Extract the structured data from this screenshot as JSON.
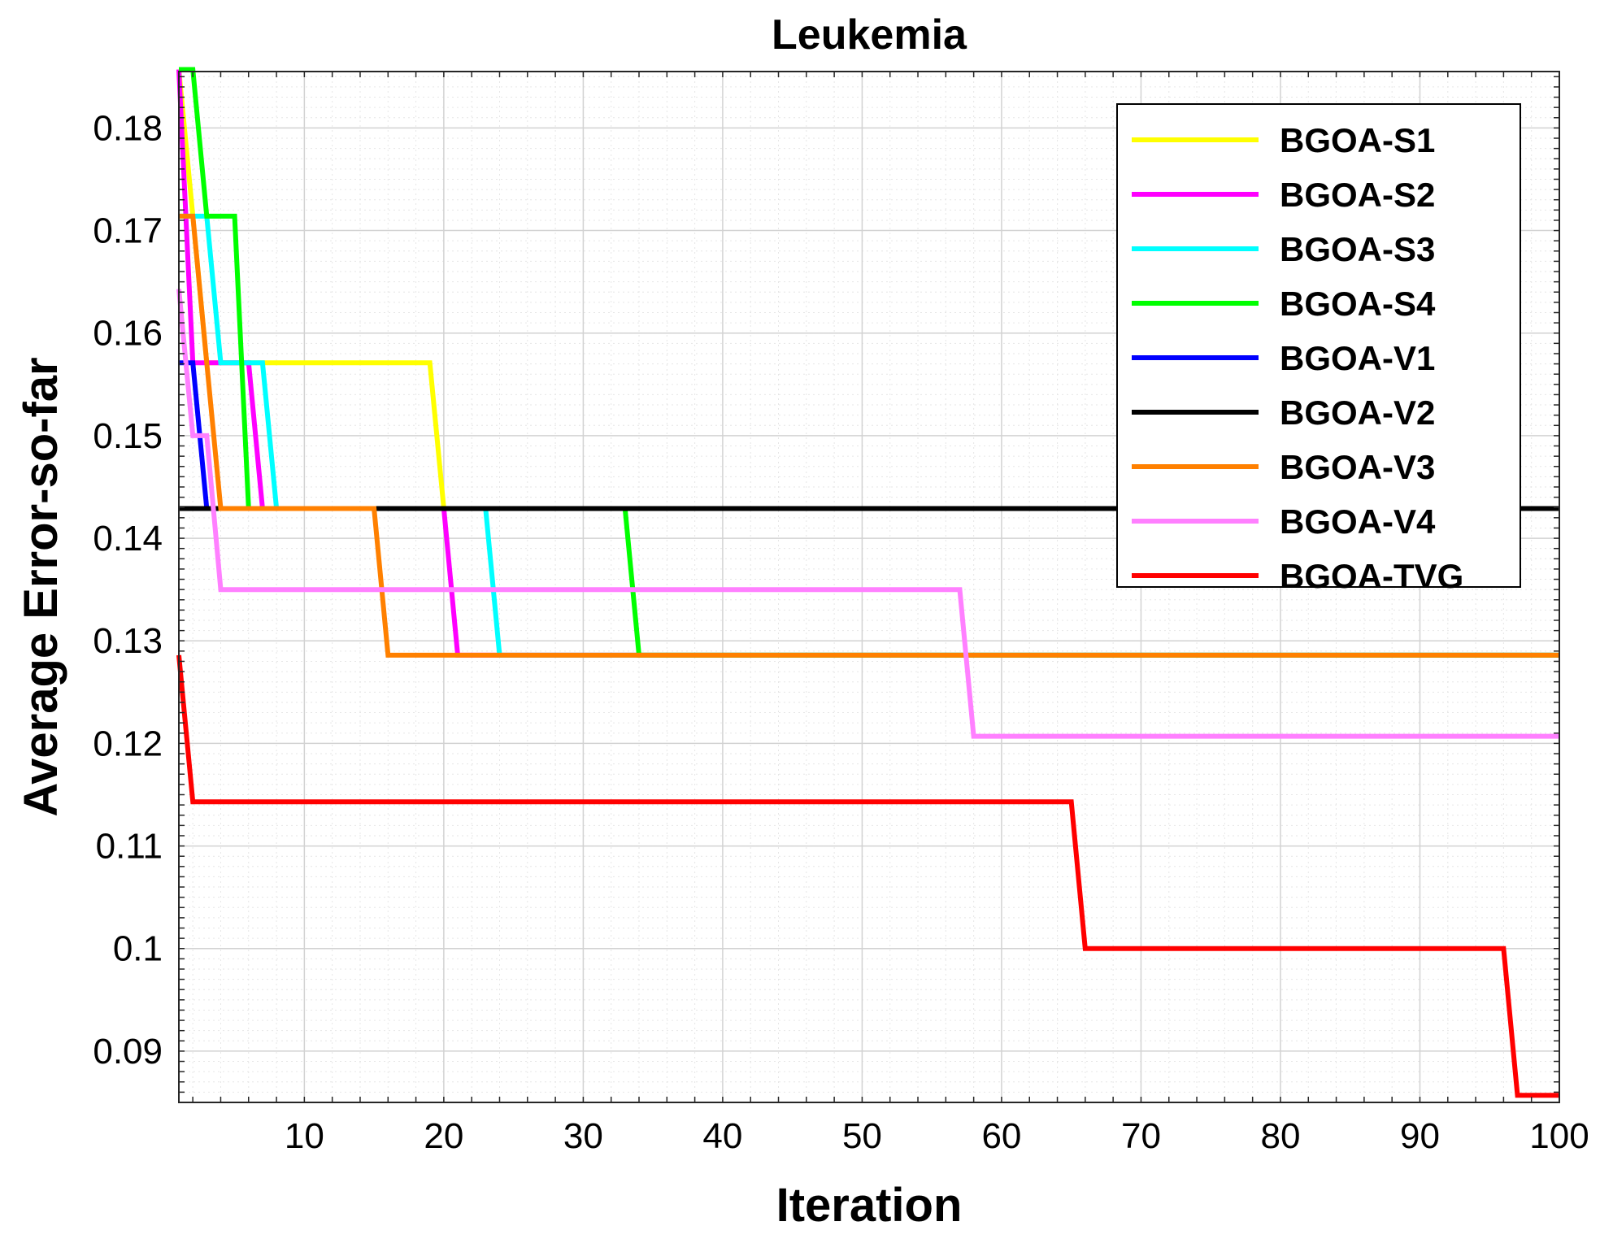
{
  "chart_data": {
    "type": "line",
    "title": "Leukemia",
    "xlabel": "Iteration",
    "ylabel": "Average Error-so-far",
    "xlim": [
      1,
      100
    ],
    "ylim": [
      0.085,
      0.1855
    ],
    "grid": true,
    "legend_position": "top-right",
    "xticks": [
      10,
      20,
      30,
      40,
      50,
      60,
      70,
      80,
      90,
      100
    ],
    "xtick_labels": [
      "10",
      "20",
      "30",
      "40",
      "50",
      "60",
      "70",
      "80",
      "90",
      "100"
    ],
    "yticks": [
      0.09,
      0.1,
      0.11,
      0.12,
      0.13,
      0.14,
      0.15,
      0.16,
      0.17,
      0.18
    ],
    "ytick_labels": [
      "0.09",
      "0.1",
      "0.11",
      "0.12",
      "0.13",
      "0.14",
      "0.15",
      "0.16",
      "0.17",
      "0.18"
    ],
    "series": [
      {
        "name": "BGOA-S1",
        "color": "#FFFF00",
        "points": [
          [
            1,
            0.1857
          ],
          [
            2,
            0.1714
          ],
          [
            3,
            0.1571
          ],
          [
            19,
            0.1571
          ],
          [
            20,
            0.1429
          ],
          [
            100,
            0.1429
          ]
        ]
      },
      {
        "name": "BGOA-S2",
        "color": "#FF00FF",
        "points": [
          [
            1,
            0.1857
          ],
          [
            2,
            0.1571
          ],
          [
            6,
            0.1571
          ],
          [
            7,
            0.1429
          ],
          [
            20,
            0.1429
          ],
          [
            21,
            0.1286
          ],
          [
            100,
            0.1286
          ]
        ]
      },
      {
        "name": "BGOA-S3",
        "color": "#00FFFF",
        "points": [
          [
            1,
            0.1714
          ],
          [
            3,
            0.1714
          ],
          [
            4,
            0.1571
          ],
          [
            7,
            0.1571
          ],
          [
            8,
            0.1429
          ],
          [
            23,
            0.1429
          ],
          [
            24,
            0.1286
          ],
          [
            100,
            0.1286
          ]
        ]
      },
      {
        "name": "BGOA-S4",
        "color": "#00FF00",
        "points": [
          [
            1,
            0.1857
          ],
          [
            2,
            0.1857
          ],
          [
            3,
            0.1714
          ],
          [
            5,
            0.1714
          ],
          [
            6,
            0.1429
          ],
          [
            33,
            0.1429
          ],
          [
            34,
            0.1286
          ],
          [
            100,
            0.1286
          ]
        ]
      },
      {
        "name": "BGOA-V1",
        "color": "#0000FF",
        "points": [
          [
            1,
            0.1571
          ],
          [
            2,
            0.1571
          ],
          [
            3,
            0.1429
          ],
          [
            100,
            0.1429
          ]
        ]
      },
      {
        "name": "BGOA-V2",
        "color": "#000000",
        "points": [
          [
            1,
            0.1429
          ],
          [
            100,
            0.1429
          ]
        ]
      },
      {
        "name": "BGOA-V3",
        "color": "#FF8000",
        "points": [
          [
            1,
            0.1714
          ],
          [
            2,
            0.1714
          ],
          [
            3,
            0.1571
          ],
          [
            4,
            0.1429
          ],
          [
            15,
            0.1429
          ],
          [
            16,
            0.1286
          ],
          [
            100,
            0.1286
          ]
        ]
      },
      {
        "name": "BGOA-V4",
        "color": "#FF80FF",
        "points": [
          [
            1,
            0.1643
          ],
          [
            2,
            0.15
          ],
          [
            3,
            0.15
          ],
          [
            4,
            0.135
          ],
          [
            57,
            0.135
          ],
          [
            58,
            0.1207
          ],
          [
            100,
            0.1207
          ]
        ]
      },
      {
        "name": "BGOA-TVG",
        "color": "#FF0000",
        "points": [
          [
            1,
            0.1286
          ],
          [
            2,
            0.1143
          ],
          [
            65,
            0.1143
          ],
          [
            66,
            0.1
          ],
          [
            96,
            0.1
          ],
          [
            97,
            0.0857
          ],
          [
            100,
            0.0857
          ]
        ]
      }
    ]
  }
}
